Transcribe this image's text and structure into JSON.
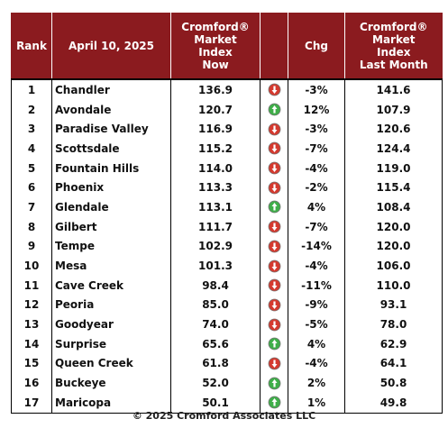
{
  "table": {
    "header": [
      [
        "Rank"
      ],
      [
        "April 10, 2025"
      ],
      [
        "Cromford®",
        "Market",
        "Index",
        "Now"
      ],
      [],
      [
        "Chg"
      ],
      [
        "Cromford®",
        "Market",
        "Index",
        "Last Month"
      ]
    ],
    "rows": [
      [
        "1",
        "Chandler",
        "136.9",
        "down",
        "-3%",
        "141.6"
      ],
      [
        "2",
        "Avondale",
        "120.7",
        "up",
        "12%",
        "107.9"
      ],
      [
        "3",
        "Paradise Valley",
        "116.9",
        "down",
        "-3%",
        "120.6"
      ],
      [
        "4",
        "Scottsdale",
        "115.2",
        "down",
        "-7%",
        "124.4"
      ],
      [
        "5",
        "Fountain Hills",
        "114.0",
        "down",
        "-4%",
        "119.0"
      ],
      [
        "6",
        "Phoenix",
        "113.3",
        "down",
        "-2%",
        "115.4"
      ],
      [
        "7",
        "Glendale",
        "113.1",
        "up",
        "4%",
        "108.4"
      ],
      [
        "8",
        "Gilbert",
        "111.7",
        "down",
        "-7%",
        "120.0"
      ],
      [
        "9",
        "Tempe",
        "102.9",
        "down",
        "-14%",
        "120.0"
      ],
      [
        "10",
        "Mesa",
        "101.3",
        "down",
        "-4%",
        "106.0"
      ],
      [
        "11",
        "Cave Creek",
        "98.4",
        "down",
        "-11%",
        "110.0"
      ],
      [
        "12",
        "Peoria",
        "85.0",
        "down",
        "-9%",
        "93.1"
      ],
      [
        "13",
        "Goodyear",
        "74.0",
        "down",
        "-5%",
        "78.0"
      ],
      [
        "14",
        "Surprise",
        "65.6",
        "up",
        "4%",
        "62.9"
      ],
      [
        "15",
        "Queen Creek",
        "61.8",
        "down",
        "-4%",
        "64.1"
      ],
      [
        "16",
        "Buckeye",
        "52.0",
        "up",
        "2%",
        "50.8"
      ],
      [
        "17",
        "Maricopa",
        "50.1",
        "up",
        "1%",
        "49.8"
      ]
    ]
  },
  "footer": "© 2025 Cromford Associates LLC"
}
